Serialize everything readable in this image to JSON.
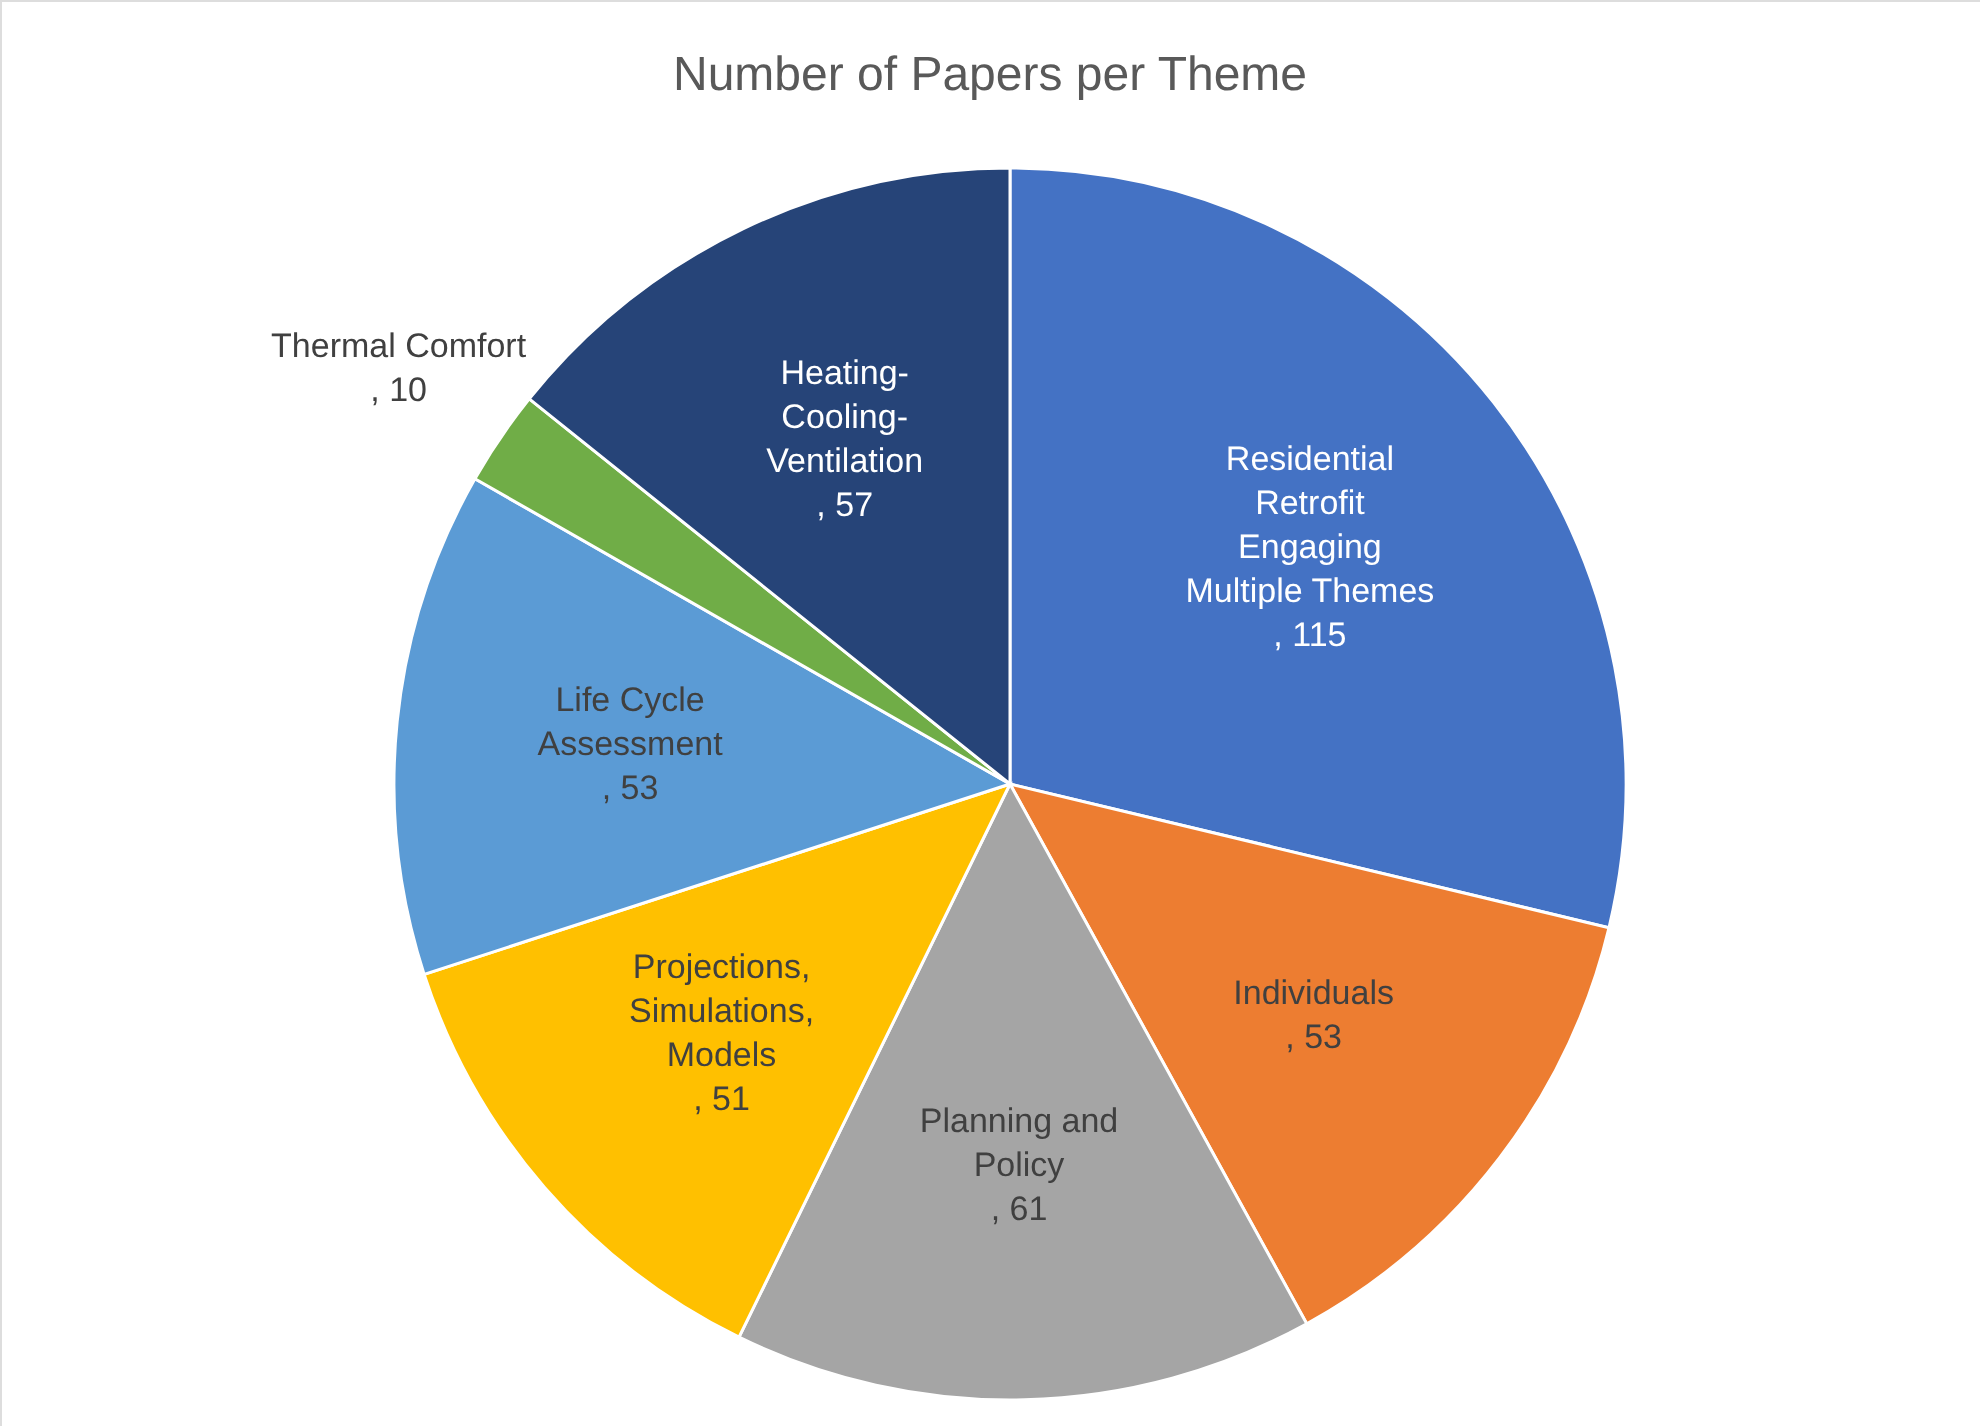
{
  "chart_data": {
    "type": "pie",
    "title": "Number of Papers per Theme",
    "categories": [
      "Residential Retrofit Engaging Multiple Themes",
      "Individuals",
      "Planning and Policy",
      "Projections, Simulations, Models",
      "Life Cycle Assessment",
      "Thermal Comfort",
      "Heating-Cooling-Ventilation"
    ],
    "values": [
      115,
      53,
      61,
      51,
      53,
      10,
      57
    ],
    "colors": [
      "#4472c4",
      "#ed7d31",
      "#a5a5a5",
      "#ffc000",
      "#5b9bd5",
      "#70ad47",
      "#264478"
    ],
    "value_labels": [
      ", 115",
      ", 53",
      ", 61",
      ", 51",
      ", 53",
      ", 10",
      ", 57"
    ]
  }
}
